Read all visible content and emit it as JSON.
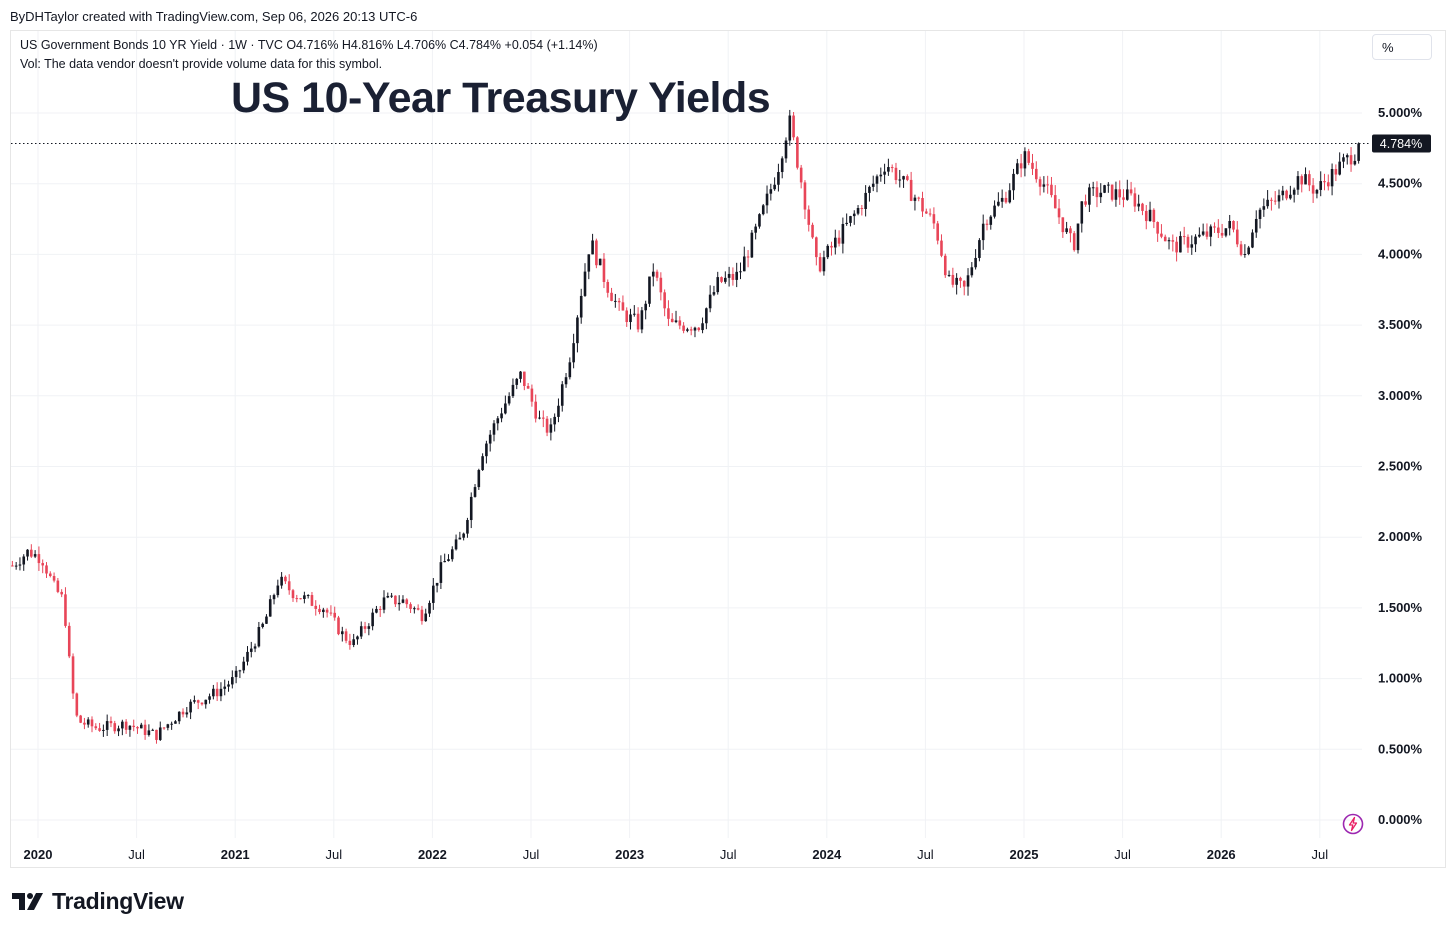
{
  "header": {
    "attribution": "ByDHTaylor created with TradingView.com, Sep 06, 2026 20:13 UTC-6",
    "legend_line1": "US Government Bonds 10 YR Yield · 1W · TVC  O4.716%  H4.816%  L4.706%  C4.784%  +0.054 (+1.14%)",
    "legend_line2": "Vol: The data vendor doesn't provide volume data for this symbol.",
    "scale_mode_label": "%"
  },
  "footer": {
    "brand": "TradingView"
  },
  "colors": {
    "up": "#131722",
    "down": "#e84558",
    "grid": "#f0f2f5",
    "price_label_bg": "#131722"
  },
  "chart_data": {
    "type": "candlestick",
    "title": "US 10-Year Treasury Yields",
    "ylim": [
      0,
      5
    ],
    "yticks": [
      0,
      0.5,
      1,
      1.5,
      2,
      2.5,
      3,
      3.5,
      4,
      4.5,
      5
    ],
    "ytick_labels": [
      "0.000%",
      "0.500%",
      "1.000%",
      "1.500%",
      "2.000%",
      "2.500%",
      "3.000%",
      "3.500%",
      "4.000%",
      "4.500%",
      "5.000%"
    ],
    "xticks": [
      {
        "t": 2020.0,
        "label": "2020",
        "bold": true
      },
      {
        "t": 2020.5,
        "label": "Jul",
        "bold": false
      },
      {
        "t": 2021.0,
        "label": "2021",
        "bold": true
      },
      {
        "t": 2021.5,
        "label": "Jul",
        "bold": false
      },
      {
        "t": 2022.0,
        "label": "2022",
        "bold": true
      },
      {
        "t": 2022.5,
        "label": "Jul",
        "bold": false
      },
      {
        "t": 2023.0,
        "label": "2023",
        "bold": true
      },
      {
        "t": 2023.5,
        "label": "Jul",
        "bold": false
      },
      {
        "t": 2024.0,
        "label": "2024",
        "bold": true
      },
      {
        "t": 2024.5,
        "label": "Jul",
        "bold": false
      },
      {
        "t": 2025.0,
        "label": "2025",
        "bold": true
      },
      {
        "t": 2025.5,
        "label": "Jul",
        "bold": false
      },
      {
        "t": 2026.0,
        "label": "2026",
        "bold": true
      },
      {
        "t": 2026.5,
        "label": "Jul",
        "bold": false
      }
    ],
    "last_price": 4.784,
    "last_price_label": "4.784%",
    "series_keypoints": [
      [
        2019.87,
        1.8
      ],
      [
        2019.95,
        1.9
      ],
      [
        2020.02,
        1.85
      ],
      [
        2020.08,
        1.65
      ],
      [
        2020.13,
        1.55
      ],
      [
        2020.17,
        0.95
      ],
      [
        2020.2,
        0.7
      ],
      [
        2020.3,
        0.65
      ],
      [
        2020.45,
        0.68
      ],
      [
        2020.6,
        0.6
      ],
      [
        2020.75,
        0.8
      ],
      [
        2020.9,
        0.9
      ],
      [
        2021.0,
        1.0
      ],
      [
        2021.15,
        1.4
      ],
      [
        2021.22,
        1.7
      ],
      [
        2021.3,
        1.6
      ],
      [
        2021.45,
        1.5
      ],
      [
        2021.55,
        1.3
      ],
      [
        2021.6,
        1.25
      ],
      [
        2021.75,
        1.55
      ],
      [
        2021.85,
        1.55
      ],
      [
        2021.95,
        1.45
      ],
      [
        2022.05,
        1.8
      ],
      [
        2022.15,
        2.0
      ],
      [
        2022.25,
        2.6
      ],
      [
        2022.35,
        2.9
      ],
      [
        2022.45,
        3.15
      ],
      [
        2022.55,
        2.8
      ],
      [
        2022.6,
        2.75
      ],
      [
        2022.7,
        3.3
      ],
      [
        2022.8,
        4.1
      ],
      [
        2022.88,
        3.8
      ],
      [
        2022.95,
        3.6
      ],
      [
        2023.05,
        3.5
      ],
      [
        2023.12,
        3.9
      ],
      [
        2023.2,
        3.5
      ],
      [
        2023.35,
        3.5
      ],
      [
        2023.45,
        3.8
      ],
      [
        2023.55,
        3.85
      ],
      [
        2023.65,
        4.2
      ],
      [
        2023.75,
        4.6
      ],
      [
        2023.81,
        4.95
      ],
      [
        2023.88,
        4.45
      ],
      [
        2023.95,
        3.9
      ],
      [
        2024.05,
        4.1
      ],
      [
        2024.15,
        4.3
      ],
      [
        2024.3,
        4.65
      ],
      [
        2024.45,
        4.4
      ],
      [
        2024.55,
        4.2
      ],
      [
        2024.62,
        3.8
      ],
      [
        2024.7,
        3.75
      ],
      [
        2024.8,
        4.25
      ],
      [
        2024.9,
        4.4
      ],
      [
        2025.0,
        4.7
      ],
      [
        2025.1,
        4.5
      ],
      [
        2025.2,
        4.2
      ],
      [
        2025.25,
        4.05
      ],
      [
        2025.3,
        4.4
      ],
      [
        2025.4,
        4.45
      ],
      [
        2025.55,
        4.4
      ],
      [
        2025.65,
        4.25
      ],
      [
        2025.75,
        4.05
      ],
      [
        2025.85,
        4.1
      ],
      [
        2025.95,
        4.15
      ],
      [
        2026.05,
        4.2
      ],
      [
        2026.12,
        4.0
      ],
      [
        2026.18,
        4.3
      ],
      [
        2026.3,
        4.4
      ],
      [
        2026.4,
        4.55
      ],
      [
        2026.48,
        4.45
      ],
      [
        2026.55,
        4.55
      ],
      [
        2026.62,
        4.65
      ],
      [
        2026.68,
        4.72
      ],
      [
        2026.71,
        4.784
      ]
    ]
  }
}
